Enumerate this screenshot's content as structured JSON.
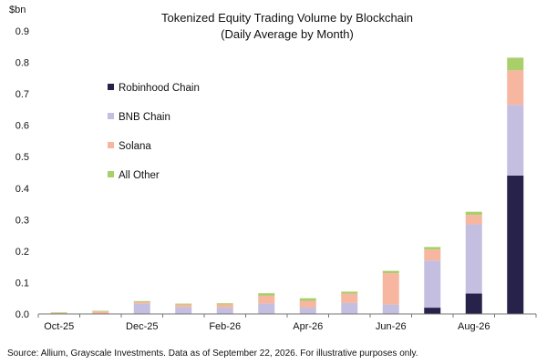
{
  "chart_data": {
    "type": "bar",
    "stacked": true,
    "title": "Tokenized Equity Trading Volume by Blockchain",
    "subtitle": "(Daily Average by Month)",
    "ylabel": "$bn",
    "xlabel": "",
    "ylim": [
      0,
      0.9
    ],
    "yticks": [
      "0.0",
      "0.1",
      "0.2",
      "0.3",
      "0.4",
      "0.5",
      "0.6",
      "0.7",
      "0.8",
      "0.9"
    ],
    "grid": false,
    "legend_position": "top-left",
    "categories": [
      "Oct-25",
      "Nov-25",
      "Dec-25",
      "Jan-26",
      "Feb-26",
      "Mar-26",
      "Apr-26",
      "May-26",
      "Jun-26",
      "Jul-26",
      "Aug-26",
      "Sep-26"
    ],
    "xtick_labels": [
      "Oct-25",
      "",
      "Dec-25",
      "",
      "Feb-26",
      "",
      "Apr-26",
      "",
      "Jun-26",
      "",
      "Aug-26",
      ""
    ],
    "series": [
      {
        "name": "Robinhood Chain",
        "color": "#27224a",
        "values": [
          0,
          0,
          0,
          0,
          0,
          0,
          0,
          0,
          0,
          0.02,
          0.065,
          0.44
        ]
      },
      {
        "name": "BNB Chain",
        "color": "#c4bfe0",
        "values": [
          0,
          0,
          0.033,
          0.022,
          0.02,
          0.033,
          0.02,
          0.035,
          0.03,
          0.15,
          0.22,
          0.225
        ]
      },
      {
        "name": "Solana",
        "color": "#f7b69f",
        "values": [
          0.004,
          0.008,
          0.005,
          0.008,
          0.01,
          0.025,
          0.022,
          0.03,
          0.1,
          0.035,
          0.03,
          0.11
        ]
      },
      {
        "name": "All Other",
        "color": "#a9cf6a",
        "values": [
          0.001,
          0.002,
          0.003,
          0.003,
          0.004,
          0.008,
          0.008,
          0.006,
          0.007,
          0.008,
          0.01,
          0.04
        ]
      }
    ],
    "source": "Source: Allium, Grayscale Investments. Data as of September 22, 2026. For illustrative purposes only."
  }
}
